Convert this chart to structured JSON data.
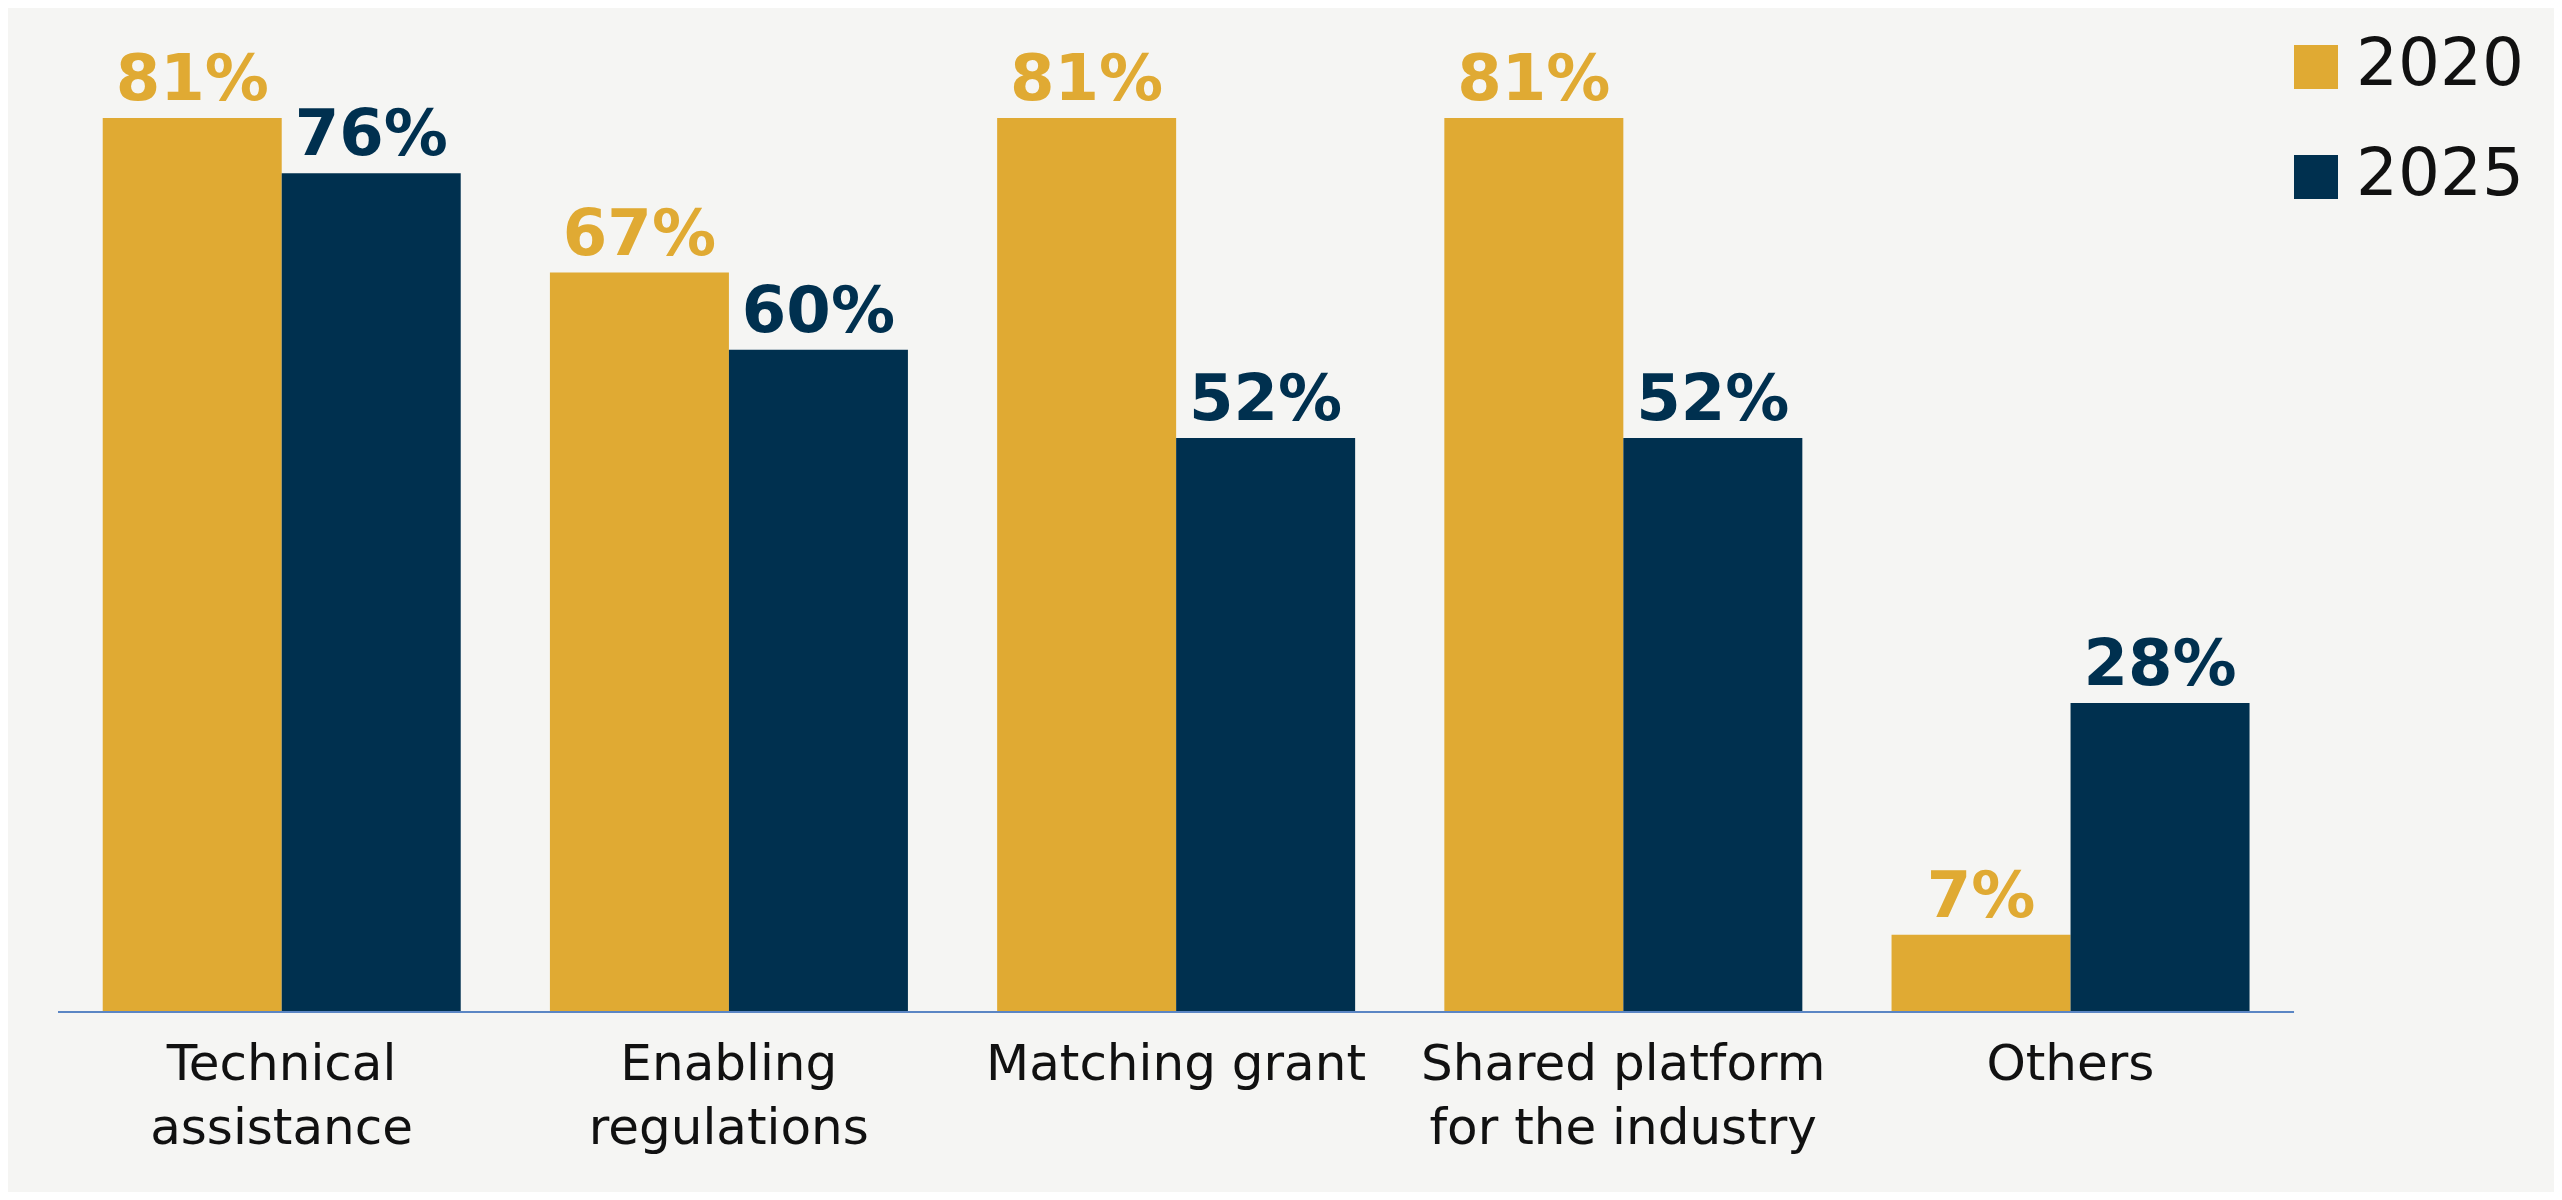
{
  "chart_data": {
    "type": "bar",
    "categories": [
      "Technical assistance",
      "Enabling regulations",
      "Matching grant",
      "Shared platform for the industry",
      "Others"
    ],
    "series": [
      {
        "name": "2020",
        "color": "#e0aa33",
        "values": [
          81,
          67,
          81,
          81,
          7
        ],
        "value_labels": [
          "81%",
          "67%",
          "81%",
          "81%",
          "7%"
        ]
      },
      {
        "name": "2025",
        "color": "#00304f",
        "values": [
          76,
          60,
          52,
          52,
          28
        ],
        "value_labels": [
          "76%",
          "60%",
          "52%",
          "52%",
          "28%"
        ]
      }
    ],
    "legend": "top right"
  }
}
